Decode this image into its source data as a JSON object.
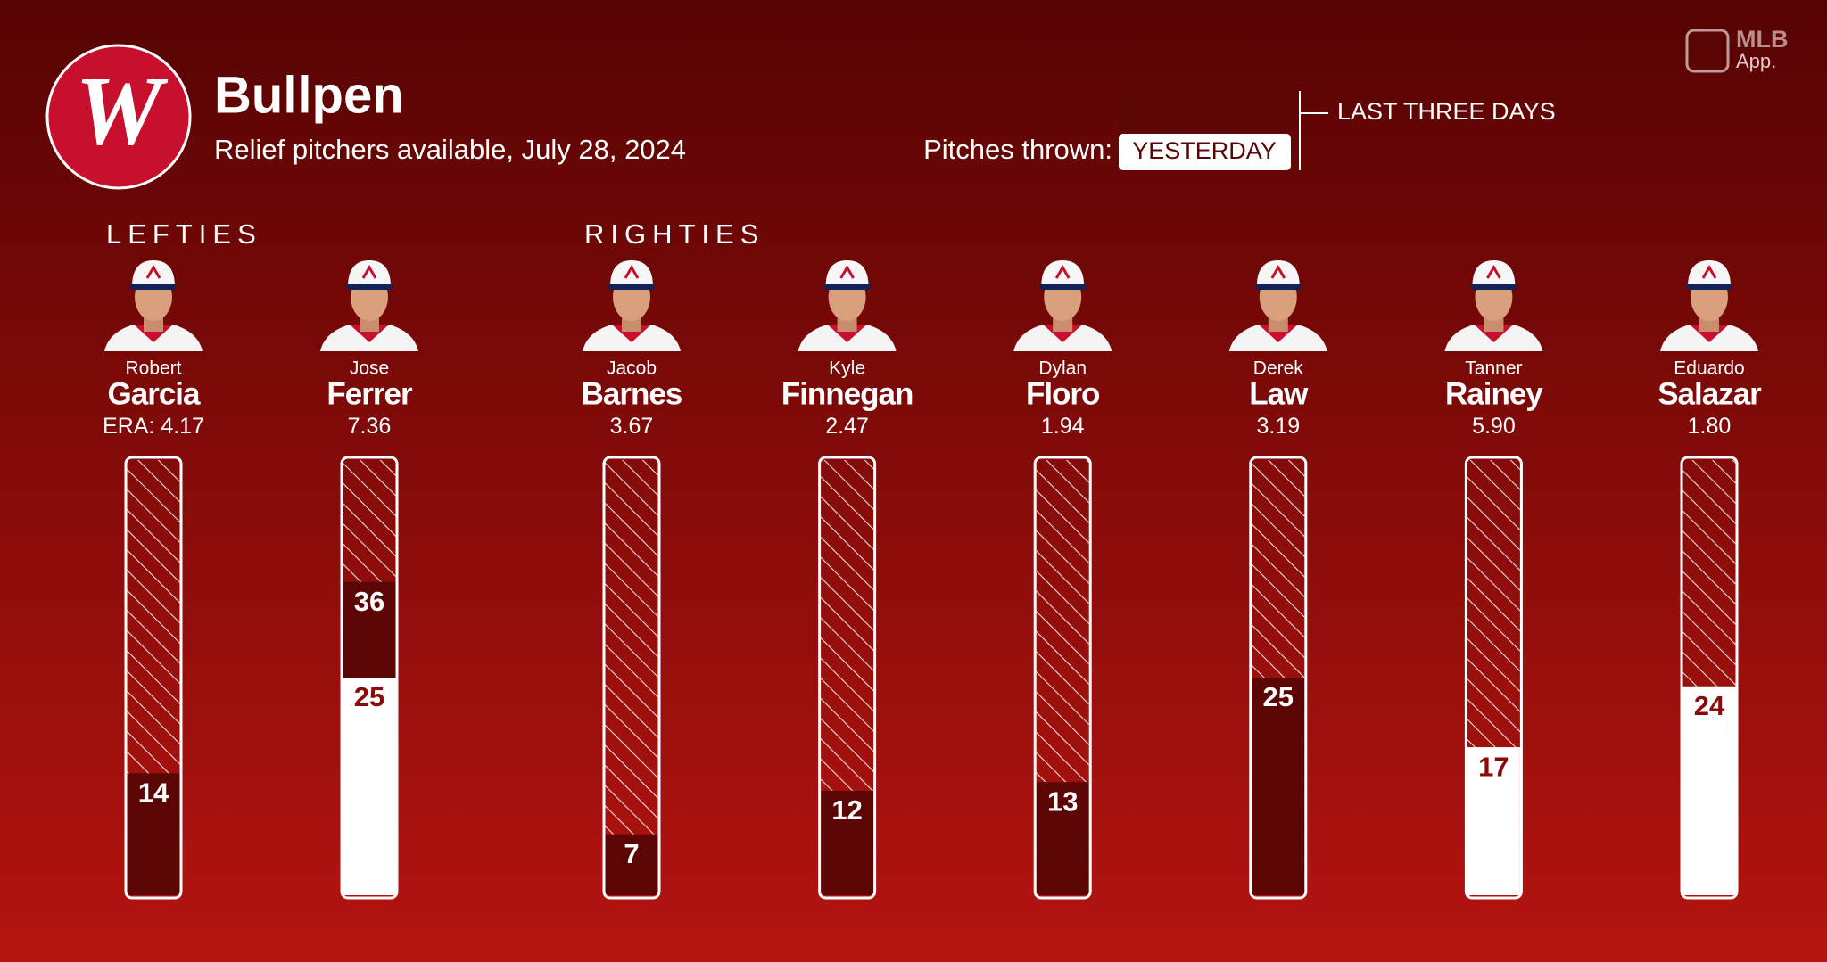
{
  "header": {
    "logo": "W",
    "title": "Bullpen",
    "subtitle": "Relief pitchers available, July 28, 2024",
    "app_brand": "MLB",
    "app_name": "App."
  },
  "legend": {
    "title": "Pitches thrown:",
    "items": [
      {
        "name": "LAST THREE DAYS",
        "color": "#5c0505"
      },
      {
        "name": "YESTERDAY",
        "color": "#ffffff"
      }
    ]
  },
  "chart_data": [
    {
      "type": "bar",
      "title": "LEFTIES",
      "era_prefix": "ERA:",
      "first_names": [
        "Robert",
        "Jose"
      ],
      "categories": [
        "Garcia",
        "Ferrer"
      ],
      "era": [
        "4.17",
        "7.36"
      ],
      "ylim": [
        0,
        50
      ],
      "series": [
        {
          "values": [
            14,
            36
          ]
        },
        {
          "values": [
            null,
            25
          ]
        }
      ]
    },
    {
      "type": "bar",
      "title": "RIGHTIES",
      "first_names": [
        "Jacob",
        "Kyle",
        "Dylan",
        "Derek",
        "Tanner",
        "Eduardo"
      ],
      "categories": [
        "Barnes",
        "Finnegan",
        "Floro",
        "Law",
        "Rainey",
        "Salazar"
      ],
      "era": [
        "3.67",
        "2.47",
        "1.94",
        "3.19",
        "5.90",
        "1.80"
      ],
      "ylim": [
        0,
        50
      ],
      "series": [
        {
          "values": [
            7,
            12,
            13,
            25,
            null,
            null
          ]
        },
        {
          "values": [
            null,
            null,
            null,
            null,
            17,
            24
          ]
        }
      ]
    }
  ]
}
